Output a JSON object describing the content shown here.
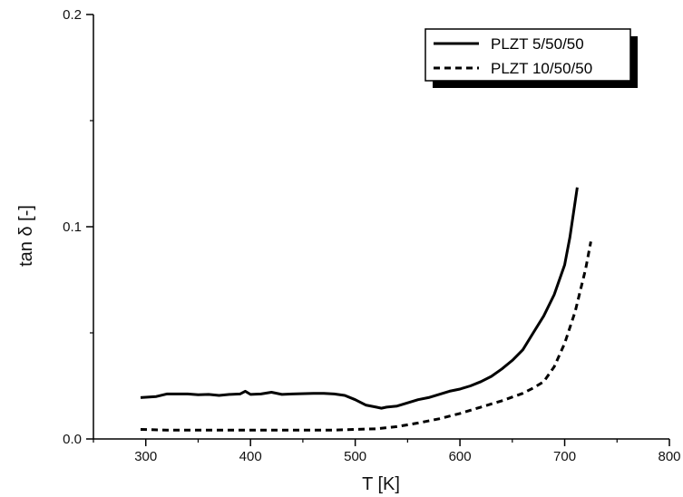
{
  "chart_data": {
    "type": "line",
    "title": "",
    "xlabel": "T [K]",
    "ylabel": "tan δ  [-]",
    "xlim": [
      250,
      800
    ],
    "ylim": [
      0,
      0.2
    ],
    "x_ticks": [
      300,
      400,
      500,
      600,
      700,
      800
    ],
    "x_tick_labels": [
      "300",
      "400",
      "500",
      "600",
      "700",
      "800"
    ],
    "y_ticks": [
      0,
      0.1,
      0.2
    ],
    "y_tick_labels": [
      "0.0",
      "0.1",
      "0.2"
    ],
    "grid": false,
    "legend_position": "top-right",
    "series": [
      {
        "name": "PLZT 5/50/50",
        "style": "solid",
        "color": "#000000",
        "x": [
          295,
          310,
          320,
          340,
          350,
          360,
          370,
          380,
          390,
          395,
          400,
          410,
          420,
          430,
          440,
          460,
          470,
          480,
          490,
          500,
          510,
          520,
          525,
          530,
          540,
          550,
          560,
          570,
          580,
          590,
          600,
          610,
          620,
          630,
          640,
          650,
          660,
          670,
          680,
          690,
          700,
          705,
          712
        ],
        "y": [
          0.0195,
          0.02,
          0.0212,
          0.0212,
          0.0208,
          0.021,
          0.0205,
          0.021,
          0.0212,
          0.0225,
          0.021,
          0.0212,
          0.022,
          0.021,
          0.0212,
          0.0215,
          0.0215,
          0.0212,
          0.0205,
          0.0185,
          0.016,
          0.015,
          0.0145,
          0.015,
          0.0155,
          0.017,
          0.0185,
          0.0195,
          0.021,
          0.0225,
          0.0235,
          0.025,
          0.027,
          0.0295,
          0.033,
          0.037,
          0.042,
          0.05,
          0.058,
          0.068,
          0.082,
          0.095,
          0.1185
        ]
      },
      {
        "name": "PLZT 10/50/50",
        "style": "dashed",
        "color": "#000000",
        "x": [
          295,
          320,
          360,
          400,
          440,
          480,
          500,
          520,
          540,
          560,
          580,
          600,
          620,
          640,
          660,
          670,
          680,
          690,
          700,
          710,
          720,
          725
        ],
        "y": [
          0.0045,
          0.0042,
          0.0042,
          0.0042,
          0.0042,
          0.0042,
          0.0045,
          0.0048,
          0.0058,
          0.0075,
          0.0095,
          0.012,
          0.015,
          0.018,
          0.0215,
          0.024,
          0.027,
          0.034,
          0.045,
          0.06,
          0.08,
          0.093
        ]
      }
    ]
  }
}
